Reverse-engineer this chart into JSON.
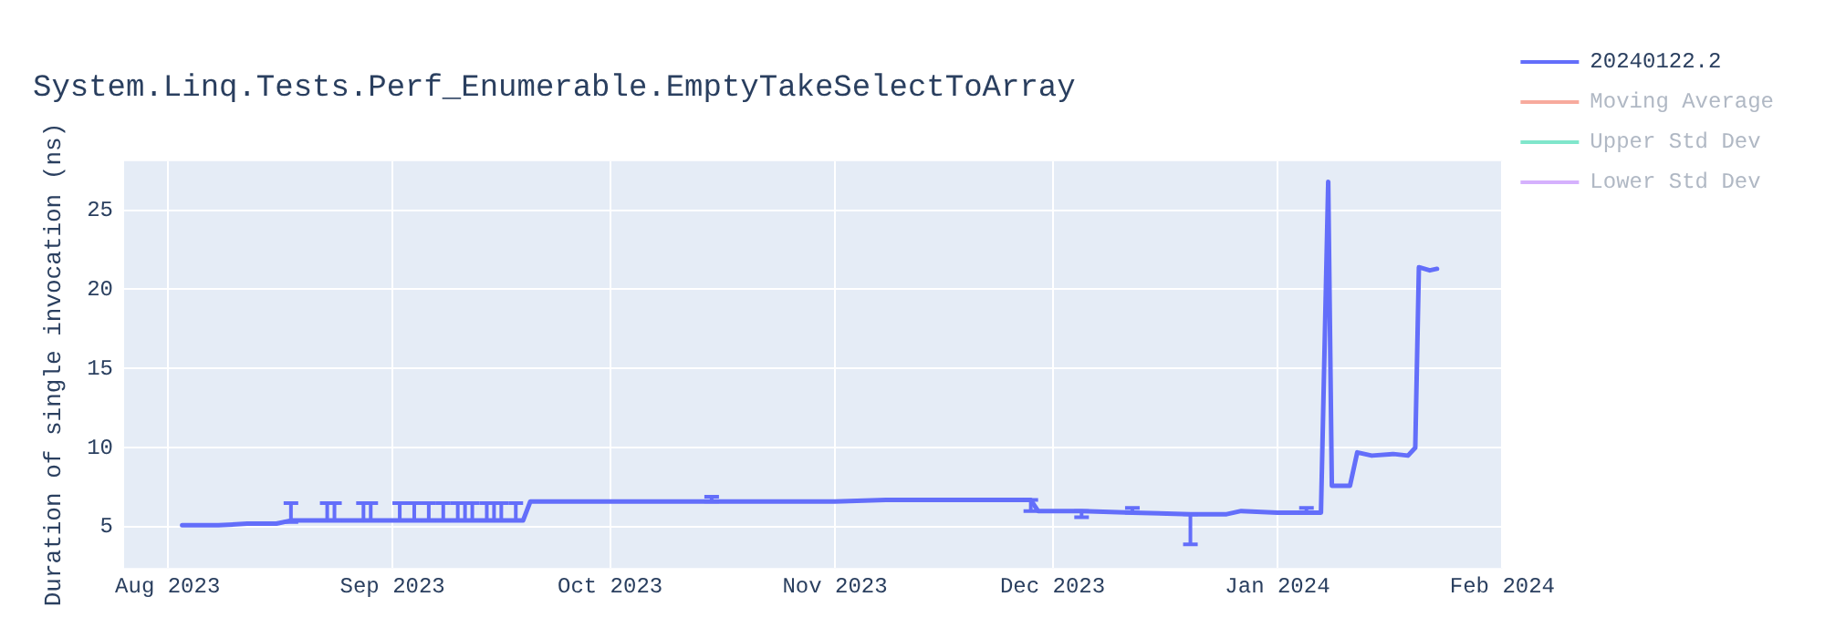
{
  "chart_data": {
    "type": "line",
    "title": "System.Linq.Tests.Perf_Enumerable.EmptyTakeSelectToArray",
    "ylabel": "Duration of single invocation (ns)",
    "xlim": [
      "2023-07-26",
      "2024-02-01"
    ],
    "xticks": [
      {
        "value": "2023-08-01",
        "label": "Aug 2023"
      },
      {
        "value": "2023-09-01",
        "label": "Sep 2023"
      },
      {
        "value": "2023-10-01",
        "label": "Oct 2023"
      },
      {
        "value": "2023-11-01",
        "label": "Nov 2023"
      },
      {
        "value": "2023-12-01",
        "label": "Dec 2023"
      },
      {
        "value": "2024-01-01",
        "label": "Jan 2024"
      },
      {
        "value": "2024-02-01",
        "label": "Feb 2024"
      }
    ],
    "ylim": [
      2.4,
      28.1
    ],
    "yticks": [
      5,
      10,
      15,
      20,
      25
    ],
    "grid": true,
    "legend": "right",
    "marker": "none",
    "line_style": "solid",
    "x": [
      "2023-08-03",
      "2023-08-08",
      "2023-08-12",
      "2023-08-16",
      "2023-08-18",
      "2023-08-20",
      "2023-08-23",
      "2023-08-24",
      "2023-08-28",
      "2023-08-29",
      "2023-09-01",
      "2023-09-02",
      "2023-09-04",
      "2023-09-05",
      "2023-09-06",
      "2023-09-08",
      "2023-09-10",
      "2023-09-11",
      "2023-09-12",
      "2023-09-14",
      "2023-09-15",
      "2023-09-16",
      "2023-09-18",
      "2023-09-19",
      "2023-09-20",
      "2023-10-10",
      "2023-10-15",
      "2023-10-25",
      "2023-11-01",
      "2023-11-08",
      "2023-11-20",
      "2023-11-28",
      "2023-11-29",
      "2023-12-05",
      "2023-12-12",
      "2023-12-20",
      "2023-12-25",
      "2023-12-27",
      "2024-01-01",
      "2024-01-05",
      "2024-01-07",
      "2024-01-08",
      "2024-01-08T12:00",
      "2024-01-11",
      "2024-01-12",
      "2024-01-14",
      "2024-01-17",
      "2024-01-19",
      "2024-01-20",
      "2024-01-20T12:00",
      "2024-01-22",
      "2024-01-23"
    ],
    "series": [
      {
        "name": "20240122.2",
        "color": "#636efa",
        "values": [
          5.1,
          5.1,
          5.2,
          5.2,
          5.4,
          5.4,
          5.4,
          5.4,
          5.4,
          5.4,
          5.4,
          5.4,
          5.4,
          5.4,
          5.4,
          5.4,
          5.4,
          5.4,
          5.4,
          5.4,
          5.4,
          5.4,
          5.4,
          5.4,
          6.6,
          6.6,
          6.6,
          6.6,
          6.6,
          6.7,
          6.7,
          6.7,
          6.0,
          6.0,
          5.9,
          5.8,
          5.8,
          6.0,
          5.9,
          5.9,
          5.9,
          26.8,
          7.6,
          7.6,
          9.7,
          9.5,
          9.6,
          9.5,
          10.0,
          21.4,
          21.2,
          21.3
        ],
        "errors": [
          null,
          null,
          null,
          null,
          [
            5.3,
            6.5
          ],
          null,
          [
            5.4,
            6.5
          ],
          [
            5.4,
            6.5
          ],
          [
            5.4,
            6.5
          ],
          [
            5.4,
            6.5
          ],
          null,
          [
            5.4,
            6.5
          ],
          [
            5.4,
            6.5
          ],
          null,
          [
            5.4,
            6.5
          ],
          [
            5.4,
            6.5
          ],
          [
            5.4,
            6.5
          ],
          [
            5.4,
            6.5
          ],
          [
            5.4,
            6.5
          ],
          [
            5.4,
            6.5
          ],
          [
            5.4,
            6.5
          ],
          [
            5.4,
            6.5
          ],
          [
            5.4,
            6.5
          ],
          null,
          null,
          null,
          [
            6.6,
            6.9
          ],
          null,
          null,
          null,
          null,
          [
            6.0,
            6.7
          ],
          null,
          [
            5.6,
            6.0
          ],
          [
            5.9,
            6.2
          ],
          [
            3.9,
            5.8
          ],
          null,
          null,
          null,
          [
            5.9,
            6.2
          ],
          null,
          null,
          null,
          null,
          null,
          null,
          null,
          null,
          null,
          null,
          null,
          null
        ]
      },
      {
        "name": "Moving Average",
        "color": "#f7aa9d",
        "values": [
          null,
          null,
          null,
          null,
          null,
          null,
          null,
          null,
          null,
          null,
          null,
          null,
          null,
          null,
          null,
          null,
          null,
          null,
          null,
          null,
          null,
          null,
          null,
          null,
          null,
          null,
          null,
          null,
          null,
          null,
          null,
          null,
          null,
          null,
          null,
          null,
          null,
          null,
          null,
          null,
          null,
          null,
          null,
          null,
          null,
          null,
          null,
          null,
          null,
          null,
          null,
          null
        ]
      },
      {
        "name": "Upper Std Dev",
        "color": "#80e6cb",
        "values": [
          null,
          null,
          null,
          null,
          null,
          null,
          null,
          null,
          null,
          null,
          null,
          null,
          null,
          null,
          null,
          null,
          null,
          null,
          null,
          null,
          null,
          null,
          null,
          null,
          null,
          null,
          null,
          null,
          null,
          null,
          null,
          null,
          null,
          null,
          null,
          null,
          null,
          null,
          null,
          null,
          null,
          null,
          null,
          null,
          null,
          null,
          null,
          null,
          null,
          null,
          null,
          null
        ]
      },
      {
        "name": "Lower Std Dev",
        "color": "#d5b1fd",
        "values": [
          null,
          null,
          null,
          null,
          null,
          null,
          null,
          null,
          null,
          null,
          null,
          null,
          null,
          null,
          null,
          null,
          null,
          null,
          null,
          null,
          null,
          null,
          null,
          null,
          null,
          null,
          null,
          null,
          null,
          null,
          null,
          null,
          null,
          null,
          null,
          null,
          null,
          null,
          null,
          null,
          null,
          null,
          null,
          null,
          null,
          null,
          null,
          null,
          null,
          null,
          null,
          null
        ]
      }
    ]
  }
}
